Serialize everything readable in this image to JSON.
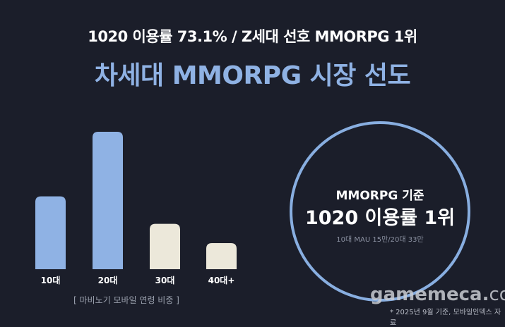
{
  "header": {
    "subtitle": "1020 이용률 73.1% / Z세대 선호 MMORPG 1위",
    "title": "차세대 MMORPG 시장 선도"
  },
  "chart_data": {
    "type": "bar",
    "categories": [
      "10대",
      "20대",
      "30대",
      "40대+"
    ],
    "values": [
      53,
      100,
      33,
      19
    ],
    "bar_colors": [
      "#8fb2e4",
      "#8fb2e4",
      "#ece8da",
      "#ece8da"
    ],
    "title": "",
    "caption": "[ 마비노기 모바일 연령 비중 ]",
    "ylim": [
      0,
      100
    ],
    "grid": false,
    "axis_values_shown": false
  },
  "highlight": {
    "line1": "MMORPG 기준",
    "line2": "1020 이용률 1위",
    "line3": "10대 MAU 15만/20대 33만",
    "ring_color": "#88aee0"
  },
  "watermark": {
    "brand": "gamemeca.",
    "tld": "com"
  },
  "footnote": "* 2025년 9월 기준, 모바일인덱스 자료",
  "colors": {
    "background": "#1b1e2a",
    "accent": "#8fb2e4"
  }
}
